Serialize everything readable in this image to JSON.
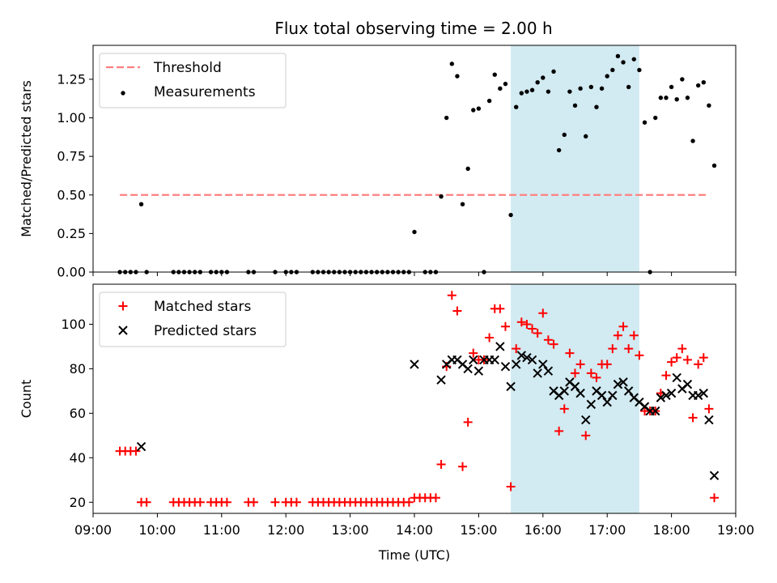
{
  "chart_data": [
    {
      "type": "scatter",
      "title": "Flux total observing time = 2.00 h",
      "xlabel": "",
      "ylabel": "Matched/Predicted stars",
      "xlim": [
        "09:00",
        "19:00"
      ],
      "ylim": [
        0,
        1.47
      ],
      "yticks": [
        0.0,
        0.25,
        0.5,
        0.75,
        1.0,
        1.25
      ],
      "ytick_labels": [
        "0.00",
        "0.25",
        "0.50",
        "0.75",
        "1.00",
        "1.25"
      ],
      "legend_position": "upper-left",
      "highlight_span": [
        "15:30",
        "17:30"
      ],
      "highlight_color": "#add8e6",
      "series": [
        {
          "name": "Threshold",
          "kind": "dashed-line",
          "color": "#ff7f7f",
          "x": [
            "09:25",
            "18:35"
          ],
          "y": [
            0.5,
            0.5
          ]
        },
        {
          "name": "Measurements",
          "kind": "dots",
          "color": "#000000",
          "points": [
            [
              "09:25",
              0
            ],
            [
              "09:30",
              0
            ],
            [
              "09:35",
              0
            ],
            [
              "09:40",
              0
            ],
            [
              "09:45",
              0.44
            ],
            [
              "09:50",
              0
            ],
            [
              "10:15",
              0
            ],
            [
              "10:20",
              0
            ],
            [
              "10:25",
              0
            ],
            [
              "10:30",
              0
            ],
            [
              "10:35",
              0
            ],
            [
              "10:40",
              0
            ],
            [
              "10:50",
              0
            ],
            [
              "10:55",
              0
            ],
            [
              "11:00",
              0
            ],
            [
              "11:05",
              0
            ],
            [
              "11:25",
              0
            ],
            [
              "11:30",
              0
            ],
            [
              "11:50",
              0
            ],
            [
              "12:00",
              0
            ],
            [
              "12:05",
              0
            ],
            [
              "12:10",
              0
            ],
            [
              "12:25",
              0
            ],
            [
              "12:30",
              0
            ],
            [
              "12:35",
              0
            ],
            [
              "12:40",
              0
            ],
            [
              "12:45",
              0
            ],
            [
              "12:50",
              0
            ],
            [
              "12:55",
              0
            ],
            [
              "13:00",
              0
            ],
            [
              "13:05",
              0
            ],
            [
              "13:10",
              0
            ],
            [
              "13:15",
              0
            ],
            [
              "13:20",
              0
            ],
            [
              "13:25",
              0
            ],
            [
              "13:30",
              0
            ],
            [
              "13:35",
              0
            ],
            [
              "13:40",
              0
            ],
            [
              "13:45",
              0
            ],
            [
              "13:50",
              0
            ],
            [
              "13:55",
              0
            ],
            [
              "14:00",
              0.26
            ],
            [
              "14:10",
              0
            ],
            [
              "14:15",
              0
            ],
            [
              "14:20",
              0
            ],
            [
              "14:25",
              0.49
            ],
            [
              "14:30",
              1.0
            ],
            [
              "14:35",
              1.35
            ],
            [
              "14:40",
              1.27
            ],
            [
              "14:45",
              0.44
            ],
            [
              "14:50",
              0.67
            ],
            [
              "14:55",
              1.05
            ],
            [
              "15:00",
              1.06
            ],
            [
              "15:05",
              0
            ],
            [
              "15:10",
              1.11
            ],
            [
              "15:15",
              1.28
            ],
            [
              "15:20",
              1.19
            ],
            [
              "15:25",
              1.22
            ],
            [
              "15:30",
              0.37
            ],
            [
              "15:35",
              1.07
            ],
            [
              "15:40",
              1.16
            ],
            [
              "15:45",
              1.17
            ],
            [
              "15:50",
              1.18
            ],
            [
              "15:55",
              1.23
            ],
            [
              "16:00",
              1.26
            ],
            [
              "16:05",
              1.17
            ],
            [
              "16:10",
              1.3
            ],
            [
              "16:15",
              0.79
            ],
            [
              "16:20",
              0.89
            ],
            [
              "16:25",
              1.17
            ],
            [
              "16:30",
              1.08
            ],
            [
              "16:35",
              1.19
            ],
            [
              "16:40",
              0.88
            ],
            [
              "16:45",
              1.2
            ],
            [
              "16:50",
              1.07
            ],
            [
              "16:55",
              1.19
            ],
            [
              "17:00",
              1.27
            ],
            [
              "17:05",
              1.31
            ],
            [
              "17:10",
              1.4
            ],
            [
              "17:15",
              1.36
            ],
            [
              "17:20",
              1.2
            ],
            [
              "17:25",
              1.38
            ],
            [
              "17:30",
              1.31
            ],
            [
              "17:35",
              0.97
            ],
            [
              "17:40",
              0
            ],
            [
              "17:45",
              1.0
            ],
            [
              "17:50",
              1.13
            ],
            [
              "17:55",
              1.13
            ],
            [
              "18:00",
              1.2
            ],
            [
              "18:05",
              1.12
            ],
            [
              "18:10",
              1.25
            ],
            [
              "18:15",
              1.13
            ],
            [
              "18:20",
              0.85
            ],
            [
              "18:25",
              1.21
            ],
            [
              "18:30",
              1.23
            ],
            [
              "18:35",
              1.08
            ],
            [
              "18:40",
              0.69
            ]
          ]
        }
      ]
    },
    {
      "type": "scatter",
      "title": "",
      "xlabel": "Time (UTC)",
      "ylabel": "Count",
      "xlim": [
        "09:00",
        "19:00"
      ],
      "xticks": [
        "09:00",
        "10:00",
        "11:00",
        "12:00",
        "13:00",
        "14:00",
        "15:00",
        "16:00",
        "17:00",
        "18:00",
        "19:00"
      ],
      "ylim": [
        15,
        118
      ],
      "yticks": [
        20,
        40,
        60,
        80,
        100
      ],
      "legend_position": "upper-left",
      "highlight_span": [
        "15:30",
        "17:30"
      ],
      "highlight_color": "#add8e6",
      "series": [
        {
          "name": "Matched stars",
          "kind": "plus",
          "color": "#ff0000",
          "points": [
            [
              "09:25",
              43
            ],
            [
              "09:30",
              43
            ],
            [
              "09:35",
              43
            ],
            [
              "09:40",
              43
            ],
            [
              "09:45",
              20
            ],
            [
              "09:50",
              20
            ],
            [
              "10:15",
              20
            ],
            [
              "10:20",
              20
            ],
            [
              "10:25",
              20
            ],
            [
              "10:30",
              20
            ],
            [
              "10:35",
              20
            ],
            [
              "10:40",
              20
            ],
            [
              "10:50",
              20
            ],
            [
              "10:55",
              20
            ],
            [
              "11:00",
              20
            ],
            [
              "11:05",
              20
            ],
            [
              "11:25",
              20
            ],
            [
              "11:30",
              20
            ],
            [
              "11:50",
              20
            ],
            [
              "12:00",
              20
            ],
            [
              "12:05",
              20
            ],
            [
              "12:10",
              20
            ],
            [
              "12:25",
              20
            ],
            [
              "12:30",
              20
            ],
            [
              "12:35",
              20
            ],
            [
              "12:40",
              20
            ],
            [
              "12:45",
              20
            ],
            [
              "12:50",
              20
            ],
            [
              "12:55",
              20
            ],
            [
              "13:00",
              20
            ],
            [
              "13:05",
              20
            ],
            [
              "13:10",
              20
            ],
            [
              "13:15",
              20
            ],
            [
              "13:20",
              20
            ],
            [
              "13:25",
              20
            ],
            [
              "13:30",
              20
            ],
            [
              "13:35",
              20
            ],
            [
              "13:40",
              20
            ],
            [
              "13:45",
              20
            ],
            [
              "13:50",
              20
            ],
            [
              "13:55",
              20
            ],
            [
              "14:00",
              22
            ],
            [
              "14:05",
              22
            ],
            [
              "14:10",
              22
            ],
            [
              "14:15",
              22
            ],
            [
              "14:20",
              22
            ],
            [
              "14:25",
              37
            ],
            [
              "14:30",
              81
            ],
            [
              "14:35",
              113
            ],
            [
              "14:40",
              106
            ],
            [
              "14:45",
              36
            ],
            [
              "14:50",
              56
            ],
            [
              "14:55",
              87
            ],
            [
              "15:00",
              84
            ],
            [
              "15:05",
              84
            ],
            [
              "15:10",
              94
            ],
            [
              "15:15",
              107
            ],
            [
              "15:20",
              107
            ],
            [
              "15:25",
              99
            ],
            [
              "15:30",
              27
            ],
            [
              "15:35",
              89
            ],
            [
              "15:40",
              101
            ],
            [
              "15:45",
              100
            ],
            [
              "15:50",
              98
            ],
            [
              "15:55",
              96
            ],
            [
              "16:00",
              105
            ],
            [
              "16:05",
              93
            ],
            [
              "16:10",
              91
            ],
            [
              "16:15",
              52
            ],
            [
              "16:20",
              62
            ],
            [
              "16:25",
              87
            ],
            [
              "16:30",
              78
            ],
            [
              "16:35",
              82
            ],
            [
              "16:40",
              50
            ],
            [
              "16:45",
              78
            ],
            [
              "16:50",
              76
            ],
            [
              "16:55",
              82
            ],
            [
              "17:00",
              82
            ],
            [
              "17:05",
              89
            ],
            [
              "17:10",
              95
            ],
            [
              "17:15",
              99
            ],
            [
              "17:20",
              89
            ],
            [
              "17:25",
              95
            ],
            [
              "17:30",
              86
            ],
            [
              "17:35",
              61
            ],
            [
              "17:40",
              61
            ],
            [
              "17:45",
              61
            ],
            [
              "17:50",
              69
            ],
            [
              "17:55",
              77
            ],
            [
              "18:00",
              83
            ],
            [
              "18:05",
              85
            ],
            [
              "18:10",
              89
            ],
            [
              "18:15",
              84
            ],
            [
              "18:20",
              58
            ],
            [
              "18:25",
              82
            ],
            [
              "18:30",
              85
            ],
            [
              "18:35",
              62
            ],
            [
              "18:40",
              22
            ]
          ]
        },
        {
          "name": "Predicted stars",
          "kind": "x",
          "color": "#000000",
          "points": [
            [
              "09:45",
              45
            ],
            [
              "14:00",
              82
            ],
            [
              "14:25",
              75
            ],
            [
              "14:30",
              82
            ],
            [
              "14:35",
              84
            ],
            [
              "14:40",
              84
            ],
            [
              "14:45",
              82
            ],
            [
              "14:50",
              80
            ],
            [
              "14:55",
              84
            ],
            [
              "15:00",
              79
            ],
            [
              "15:05",
              84
            ],
            [
              "15:10",
              84
            ],
            [
              "15:15",
              84
            ],
            [
              "15:20",
              90
            ],
            [
              "15:25",
              81
            ],
            [
              "15:30",
              72
            ],
            [
              "15:35",
              82
            ],
            [
              "15:40",
              86
            ],
            [
              "15:45",
              85
            ],
            [
              "15:50",
              84
            ],
            [
              "15:55",
              78
            ],
            [
              "16:00",
              82
            ],
            [
              "16:05",
              79
            ],
            [
              "16:10",
              70
            ],
            [
              "16:15",
              68
            ],
            [
              "16:20",
              70
            ],
            [
              "16:25",
              74
            ],
            [
              "16:30",
              72
            ],
            [
              "16:35",
              69
            ],
            [
              "16:40",
              57
            ],
            [
              "16:45",
              64
            ],
            [
              "16:50",
              70
            ],
            [
              "16:55",
              68
            ],
            [
              "17:00",
              65
            ],
            [
              "17:05",
              68
            ],
            [
              "17:10",
              73
            ],
            [
              "17:15",
              74
            ],
            [
              "17:20",
              70
            ],
            [
              "17:25",
              67
            ],
            [
              "17:30",
              65
            ],
            [
              "17:35",
              63
            ],
            [
              "17:40",
              61
            ],
            [
              "17:45",
              61
            ],
            [
              "17:50",
              67
            ],
            [
              "17:55",
              68
            ],
            [
              "18:00",
              69
            ],
            [
              "18:05",
              76
            ],
            [
              "18:10",
              71
            ],
            [
              "18:15",
              73
            ],
            [
              "18:20",
              68
            ],
            [
              "18:25",
              68
            ],
            [
              "18:30",
              69
            ],
            [
              "18:35",
              57
            ],
            [
              "18:40",
              32
            ]
          ]
        }
      ]
    }
  ]
}
